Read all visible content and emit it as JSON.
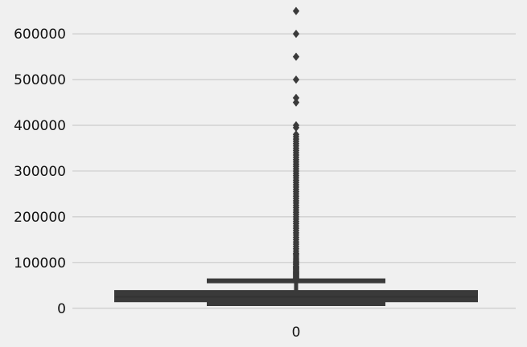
{
  "chart_data": {
    "type": "box",
    "title": "",
    "xlabel": "",
    "ylabel": "",
    "categories": [
      "0"
    ],
    "ylim": [
      -18000,
      660000
    ],
    "yticks": [
      0,
      100000,
      200000,
      300000,
      400000,
      500000,
      600000
    ],
    "ytick_labels": [
      "0",
      "100000",
      "200000",
      "300000",
      "400000",
      "500000",
      "600000"
    ],
    "grid": true,
    "colors": {
      "box": "#3a3a3a",
      "background": "#f0f0f0",
      "grid": "#cbcbcb"
    },
    "box": {
      "whisker_low": 10000,
      "q1": 15000,
      "median": 25000,
      "q3": 38000,
      "whisker_high": 60000
    },
    "outliers": [
      62000,
      64000,
      66000,
      68000,
      70000,
      72000,
      74000,
      76000,
      78000,
      80000,
      82000,
      84000,
      86000,
      88000,
      90000,
      92000,
      95000,
      98000,
      100000,
      103000,
      106000,
      110000,
      114000,
      118000,
      120000,
      125000,
      130000,
      135000,
      140000,
      145000,
      150000,
      155000,
      160000,
      165000,
      170000,
      175000,
      180000,
      185000,
      190000,
      195000,
      200000,
      205000,
      210000,
      215000,
      220000,
      225000,
      230000,
      235000,
      240000,
      245000,
      250000,
      255000,
      260000,
      265000,
      270000,
      275000,
      280000,
      285000,
      290000,
      295000,
      300000,
      305000,
      310000,
      315000,
      320000,
      325000,
      330000,
      335000,
      340000,
      345000,
      350000,
      355000,
      360000,
      365000,
      370000,
      375000,
      380000,
      395000,
      400000,
      450000,
      460000,
      500000,
      550000,
      600000,
      650000
    ]
  }
}
